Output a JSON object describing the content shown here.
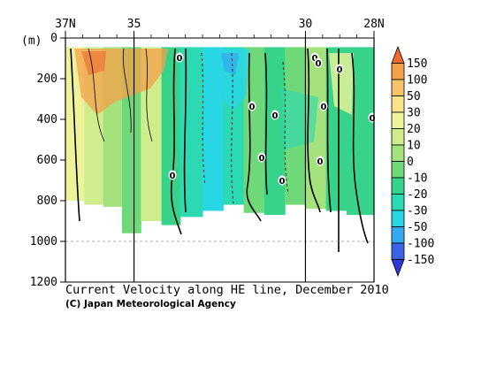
{
  "chart_data": {
    "type": "heatmap",
    "title": "Current Velocity along HE line, December 2010",
    "credit": "(C) Japan Meteorological Agency",
    "ylabel": "(m)",
    "x_axis": {
      "ticks": [
        {
          "lat": 37,
          "label": "37N"
        },
        {
          "lat": 35,
          "label": "35"
        },
        {
          "lat": 30,
          "label": "30"
        },
        {
          "lat": 28,
          "label": "28N"
        }
      ],
      "range": [
        37,
        28
      ]
    },
    "y_axis": {
      "ticks": [
        0,
        200,
        400,
        600,
        800,
        1000,
        1200
      ],
      "tick_labels": [
        "0",
        "200",
        "400",
        "600",
        "800",
        "1000",
        "1200"
      ],
      "range": [
        0,
        1200
      ],
      "reference_line": 1000
    },
    "colorbar": {
      "labels": [
        "150",
        "100",
        "50",
        "30",
        "20",
        "10",
        "0",
        "-10",
        "-20",
        "-30",
        "-50",
        "-100",
        "-150"
      ],
      "bins": [
        {
          "color": "#f06a2e"
        },
        {
          "color": "#f5a04a"
        },
        {
          "color": "#f7c26a"
        },
        {
          "color": "#f8e28a"
        },
        {
          "color": "#eef39a"
        },
        {
          "color": "#cfed8d"
        },
        {
          "color": "#a3e27c"
        },
        {
          "color": "#6fd97a"
        },
        {
          "color": "#38d38a"
        },
        {
          "color": "#2bd9b3"
        },
        {
          "color": "#29d6e4"
        },
        {
          "color": "#36a8f0"
        },
        {
          "color": "#3c62e8"
        },
        {
          "color": "#2d3ad6"
        }
      ]
    },
    "zero_contour_labels": [
      "0",
      "0",
      "0",
      "0",
      "0",
      "0",
      "0",
      "0",
      "0",
      "0",
      "0",
      "0"
    ],
    "sections": [
      {
        "from_lat": 37.0,
        "to_lat": 36.45,
        "value": 28,
        "bottom_depth": 800
      },
      {
        "from_lat": 36.45,
        "to_lat": 35.9,
        "value": 18,
        "bottom_depth": 820
      },
      {
        "from_lat": 35.9,
        "to_lat": 35.35,
        "value": 8,
        "bottom_depth": 830
      },
      {
        "from_lat": 35.35,
        "to_lat": 34.8,
        "value": -4,
        "bottom_depth": 960
      },
      {
        "from_lat": 34.8,
        "to_lat": 34.2,
        "value": 12,
        "bottom_depth": 900
      },
      {
        "from_lat": 34.2,
        "to_lat": 33.65,
        "value": -12,
        "bottom_depth": 920
      },
      {
        "from_lat": 33.65,
        "to_lat": 33.0,
        "value": -25,
        "bottom_depth": 880
      },
      {
        "from_lat": 33.0,
        "to_lat": 32.4,
        "value": -40,
        "bottom_depth": 850
      },
      {
        "from_lat": 32.4,
        "to_lat": 31.8,
        "value": -22,
        "bottom_depth": 820
      },
      {
        "from_lat": 31.8,
        "to_lat": 31.2,
        "value": -8,
        "bottom_depth": 860
      },
      {
        "from_lat": 31.2,
        "to_lat": 30.6,
        "value": -18,
        "bottom_depth": 870
      },
      {
        "from_lat": 30.6,
        "to_lat": 30.0,
        "value": -6,
        "bottom_depth": 820
      },
      {
        "from_lat": 30.0,
        "to_lat": 29.4,
        "value": 6,
        "bottom_depth": 840
      },
      {
        "from_lat": 29.4,
        "to_lat": 28.8,
        "value": -12,
        "bottom_depth": 850
      },
      {
        "from_lat": 28.8,
        "to_lat": 28.0,
        "value": -20,
        "bottom_depth": 870
      }
    ]
  }
}
